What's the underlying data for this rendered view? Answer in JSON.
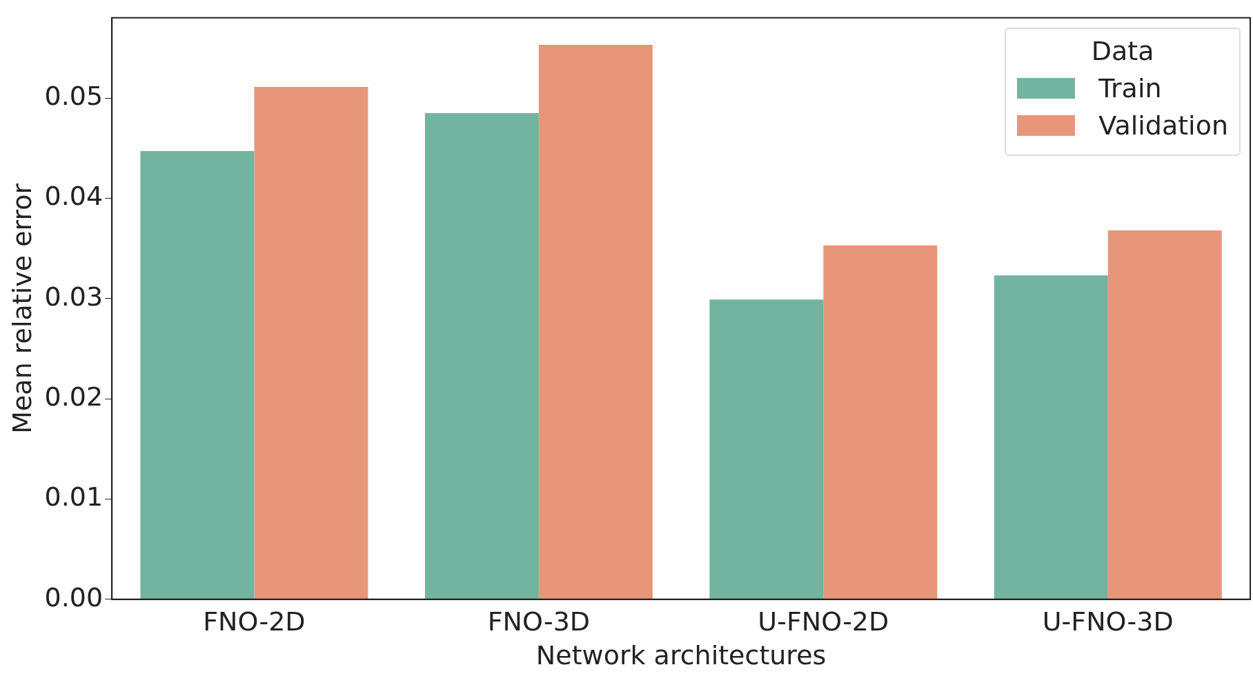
{
  "chart_data": {
    "type": "bar",
    "xlabel": "Network architectures",
    "ylabel": "Mean relative error",
    "legend_title": "Data",
    "legend": "top right",
    "categories": [
      "FNO-2D",
      "FNO-3D",
      "U-FNO-2D",
      "U-FNO-3D"
    ],
    "series": [
      {
        "name": "Train",
        "color": "#73b4a0",
        "values": [
          0.0447,
          0.0485,
          0.0299,
          0.0323
        ]
      },
      {
        "name": "Validation",
        "color": "#e8967a",
        "values": [
          0.0511,
          0.0553,
          0.0353,
          0.0368
        ]
      }
    ],
    "ylim": [
      0,
      0.058
    ],
    "yticks": [
      {
        "value": 0,
        "label": "0.00"
      },
      0.01,
      0.02,
      0.03,
      0.04,
      0.05
    ],
    "grid": false
  }
}
